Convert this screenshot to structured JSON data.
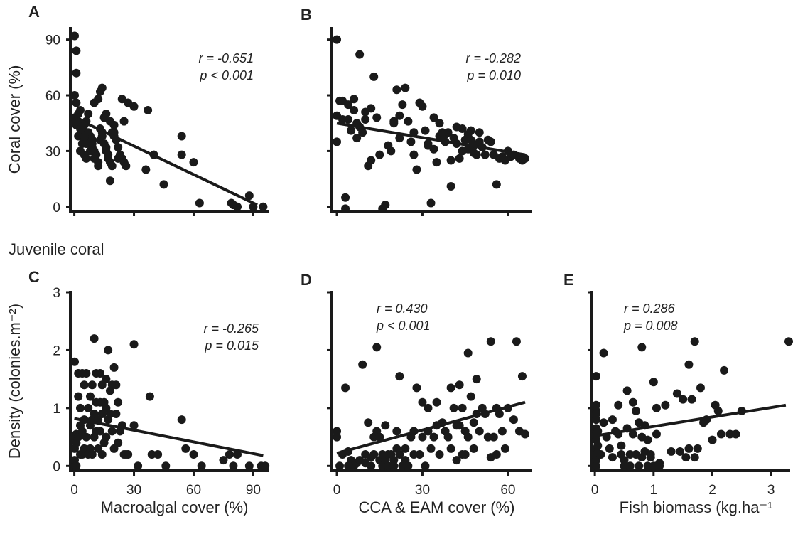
{
  "figure": {
    "row_label": "Juvenile coral"
  },
  "chart_data": [
    {
      "id": "A",
      "type": "scatter",
      "panel_letter": "A",
      "xlabel": "",
      "ylabel": "Coral cover (%)",
      "xlim": [
        -2,
        97
      ],
      "ylim": [
        -2,
        96
      ],
      "xticks": [
        0,
        30,
        60,
        90
      ],
      "yticks": [
        0,
        30,
        60,
        90
      ],
      "show_x_tick_labels": false,
      "show_y_tick_labels": true,
      "stats": {
        "r": "r = -0.651",
        "p": "p < 0.001"
      },
      "stats_anchor": "top-right",
      "trend": {
        "x": [
          0,
          92
        ],
        "y": [
          48,
          1
        ]
      },
      "points": {
        "x": [
          0,
          1,
          1,
          0,
          1,
          0,
          2,
          1,
          3,
          4,
          2,
          5,
          4,
          3,
          5,
          6,
          7,
          6,
          5,
          7,
          8,
          8,
          9,
          9,
          10,
          11,
          10,
          12,
          12,
          13,
          14,
          14,
          13,
          15,
          16,
          16,
          17,
          17,
          18,
          19,
          18,
          20,
          20,
          21,
          22,
          23,
          24,
          25,
          26,
          1,
          2,
          3,
          4,
          5,
          6,
          8,
          9,
          10,
          12,
          13,
          14,
          15,
          16,
          18,
          19,
          20,
          22,
          24,
          25,
          27,
          30,
          36,
          37,
          40,
          45,
          54,
          54,
          60,
          63,
          79,
          80,
          82,
          88,
          90,
          95
        ],
        "y": [
          92,
          84,
          72,
          60,
          56,
          48,
          46,
          44,
          42,
          40,
          38,
          36,
          34,
          30,
          28,
          26,
          50,
          46,
          44,
          40,
          38,
          36,
          34,
          32,
          30,
          28,
          26,
          24,
          22,
          42,
          40,
          38,
          36,
          34,
          32,
          30,
          28,
          26,
          24,
          22,
          14,
          44,
          40,
          36,
          32,
          28,
          26,
          24,
          22,
          46,
          50,
          52,
          44,
          38,
          34,
          30,
          36,
          56,
          58,
          62,
          64,
          48,
          50,
          46,
          40,
          38,
          26,
          58,
          46,
          56,
          54,
          20,
          52,
          28,
          12,
          38,
          28,
          24,
          2,
          2,
          1,
          0,
          6,
          0,
          0
        ]
      }
    },
    {
      "id": "B",
      "type": "scatter",
      "panel_letter": "B",
      "xlabel": "",
      "ylabel": "",
      "xlim": [
        -2,
        68
      ],
      "ylim": [
        -2,
        96
      ],
      "xticks": [
        0,
        30,
        60
      ],
      "yticks": [
        0,
        30,
        60,
        90
      ],
      "show_x_tick_labels": false,
      "show_y_tick_labels": false,
      "stats": {
        "r": "r = -0.282",
        "p": "p = 0.010"
      },
      "stats_anchor": "top-right",
      "trend": {
        "x": [
          0,
          66
        ],
        "y": [
          45,
          28
        ]
      },
      "points": {
        "x": [
          0,
          0,
          0,
          1,
          2,
          2,
          3,
          3,
          4,
          4,
          5,
          6,
          6,
          7,
          7,
          8,
          8,
          9,
          10,
          10,
          11,
          12,
          12,
          13,
          14,
          15,
          16,
          17,
          18,
          19,
          20,
          20,
          21,
          22,
          22,
          23,
          24,
          25,
          26,
          27,
          27,
          28,
          29,
          30,
          31,
          32,
          32,
          33,
          34,
          34,
          35,
          36,
          36,
          37,
          38,
          38,
          39,
          40,
          40,
          41,
          42,
          42,
          43,
          44,
          44,
          45,
          46,
          46,
          47,
          47,
          48,
          48,
          49,
          50,
          50,
          51,
          52,
          53,
          54,
          55,
          56,
          57,
          58,
          59,
          60,
          61,
          62,
          64,
          65,
          66
        ],
        "y": [
          90,
          49,
          35,
          57,
          57,
          47,
          5,
          -1,
          55,
          47,
          41,
          58,
          52,
          45,
          37,
          82,
          43,
          40,
          51,
          47,
          22,
          25,
          53,
          70,
          48,
          28,
          -1,
          1,
          33,
          30,
          46,
          45,
          63,
          37,
          49,
          55,
          64,
          46,
          35,
          40,
          28,
          20,
          56,
          54,
          41,
          33,
          34,
          2,
          31,
          48,
          24,
          45,
          38,
          40,
          39,
          35,
          40,
          25,
          11,
          37,
          43,
          34,
          26,
          42,
          30,
          36,
          31,
          39,
          36,
          41,
          33,
          29,
          28,
          40,
          35,
          32,
          28,
          36,
          35,
          28,
          12,
          26,
          27,
          25,
          30,
          27,
          28,
          26,
          25,
          26
        ]
      }
    },
    {
      "id": "C",
      "type": "scatter",
      "panel_letter": "C",
      "xlabel": "Macroalgal cover (%)",
      "ylabel": "Density (colonies.m⁻²)",
      "xlim": [
        -2,
        97
      ],
      "ylim": [
        -0.07,
        3
      ],
      "xticks": [
        0,
        30,
        60,
        90
      ],
      "yticks": [
        0,
        1,
        2,
        3
      ],
      "show_x_tick_labels": true,
      "show_y_tick_labels": true,
      "stats": {
        "r": "r = -0.265",
        "p": "p = 0.015"
      },
      "stats_anchor": "top-right",
      "trend": {
        "x": [
          0,
          95
        ],
        "y": [
          0.82,
          0.18
        ]
      },
      "points": {
        "x": [
          0,
          0,
          0,
          0,
          0,
          1,
          1,
          1,
          2,
          2,
          2,
          3,
          3,
          3,
          4,
          4,
          4,
          5,
          5,
          5,
          6,
          6,
          7,
          7,
          8,
          8,
          8,
          9,
          9,
          9,
          10,
          10,
          10,
          11,
          11,
          11,
          12,
          12,
          13,
          13,
          13,
          14,
          14,
          14,
          15,
          15,
          16,
          16,
          16,
          17,
          17,
          18,
          18,
          19,
          19,
          20,
          20,
          21,
          21,
          22,
          22,
          23,
          24,
          25,
          26,
          27,
          30,
          30,
          32,
          38,
          39,
          42,
          46,
          54,
          56,
          60,
          64,
          75,
          78,
          80,
          82,
          88,
          94,
          96
        ],
        "y": [
          1.8,
          0.5,
          0.3,
          0.1,
          0,
          0.55,
          0.4,
          0,
          1.6,
          1.2,
          0.5,
          1.0,
          0.7,
          0.2,
          1.6,
          0.6,
          0.2,
          1.4,
          0.8,
          0.3,
          1.6,
          0.5,
          1.0,
          0.2,
          1.2,
          0.7,
          0.3,
          1.4,
          0.8,
          0.2,
          2.2,
          0.9,
          0.5,
          1.6,
          1.1,
          0.6,
          0.8,
          0.3,
          1.6,
          1.1,
          0.6,
          1.4,
          0.9,
          0.2,
          1.1,
          0.4,
          1.5,
          1.0,
          0.5,
          2.0,
          0.8,
          1.3,
          0.9,
          1.4,
          0.6,
          1.7,
          0.3,
          1.4,
          0.9,
          1.1,
          0.4,
          0.6,
          0.7,
          0.2,
          0.2,
          0.2,
          2.1,
          0.7,
          0,
          1.2,
          0.2,
          0.2,
          0,
          0.8,
          0.3,
          0.2,
          0,
          0.1,
          0.2,
          0,
          0.2,
          0,
          0,
          0
        ]
      }
    },
    {
      "id": "D",
      "type": "scatter",
      "panel_letter": "D",
      "xlabel": "CCA & EAM cover (%)",
      "ylabel": "",
      "xlim": [
        -2,
        68
      ],
      "ylim": [
        -0.07,
        3
      ],
      "xticks": [
        0,
        30,
        60
      ],
      "yticks": [
        0,
        1,
        2,
        3
      ],
      "show_x_tick_labels": true,
      "show_y_tick_labels": false,
      "stats": {
        "r": "r = 0.430",
        "p": "p < 0.001"
      },
      "stats_anchor": "top-left",
      "trend": {
        "x": [
          0,
          66
        ],
        "y": [
          0.22,
          1.1
        ]
      },
      "points": {
        "x": [
          0,
          0,
          1,
          2,
          3,
          4,
          4,
          5,
          6,
          7,
          8,
          9,
          10,
          10,
          11,
          12,
          12,
          13,
          13,
          14,
          14,
          15,
          15,
          16,
          16,
          17,
          17,
          18,
          18,
          19,
          20,
          20,
          21,
          21,
          22,
          22,
          23,
          24,
          24,
          25,
          26,
          27,
          27,
          28,
          29,
          30,
          30,
          31,
          32,
          32,
          33,
          34,
          35,
          35,
          36,
          37,
          38,
          39,
          40,
          40,
          41,
          42,
          42,
          43,
          43,
          44,
          44,
          45,
          45,
          46,
          46,
          47,
          48,
          48,
          49,
          49,
          50,
          51,
          52,
          53,
          54,
          54,
          55,
          56,
          56,
          57,
          58,
          59,
          60,
          62,
          63,
          64,
          65,
          66
        ],
        "y": [
          0.5,
          0.6,
          0,
          0.2,
          1.35,
          0,
          0.25,
          0.1,
          0,
          0.05,
          0.1,
          1.75,
          0.2,
          0.05,
          0.75,
          0.15,
          0,
          0.5,
          0.2,
          0.6,
          2.05,
          0.1,
          0.5,
          0.2,
          0,
          0.1,
          0.7,
          0.2,
          0,
          0.2,
          0.1,
          0,
          0.3,
          0.6,
          0.2,
          1.55,
          0,
          0.1,
          0.3,
          0,
          0.5,
          0.2,
          0.6,
          1.35,
          0.2,
          0.5,
          1.1,
          0,
          0.6,
          1.0,
          0.3,
          0.5,
          1.1,
          0.7,
          0.2,
          0.75,
          0.6,
          0.5,
          1.35,
          0.3,
          1.0,
          0.7,
          0.1,
          1.4,
          0.7,
          0.2,
          1.0,
          0.6,
          0.2,
          1.95,
          0.5,
          1.2,
          0.75,
          0.3,
          1.5,
          0.9,
          0.6,
          1.0,
          0.9,
          0.5,
          2.15,
          0.15,
          0.5,
          0.2,
          1.0,
          0.9,
          0.6,
          0.3,
          1.0,
          0.8,
          2.15,
          0.6,
          1.55,
          0.55
        ]
      }
    },
    {
      "id": "E",
      "type": "scatter",
      "panel_letter": "E",
      "xlabel": "Fish biomass (kg.ha⁻¹",
      "ylabel": "",
      "xlim": [
        -0.05,
        3.3
      ],
      "ylim": [
        -0.07,
        3
      ],
      "xticks": [
        0,
        1,
        2,
        3
      ],
      "yticks": [
        0,
        1,
        2,
        3
      ],
      "show_x_tick_labels": true,
      "show_y_tick_labels": false,
      "stats": {
        "r": "r = 0.286",
        "p": "p = 0.008"
      },
      "stats_anchor": "top-left",
      "trend": {
        "x": [
          0,
          3.25
        ],
        "y": [
          0.52,
          1.05
        ]
      },
      "points": {
        "x": [
          0,
          0,
          0,
          0,
          0,
          0,
          0,
          0,
          0,
          0,
          0,
          0,
          0.05,
          0.05,
          0.1,
          0.15,
          0.15,
          0.2,
          0.25,
          0.3,
          0.3,
          0.35,
          0.4,
          0.4,
          0.45,
          0.45,
          0.5,
          0.5,
          0.55,
          0.55,
          0.6,
          0.6,
          0.65,
          0.65,
          0.7,
          0.7,
          0.75,
          0.75,
          0.8,
          0.8,
          0.8,
          0.85,
          0.85,
          0.9,
          0.9,
          0.95,
          0.95,
          1.0,
          1.0,
          1.05,
          1.05,
          1.1,
          1.1,
          1.2,
          1.3,
          1.4,
          1.45,
          1.5,
          1.55,
          1.6,
          1.6,
          1.65,
          1.7,
          1.7,
          1.75,
          1.8,
          1.85,
          1.9,
          2.0,
          2.05,
          2.1,
          2.15,
          2.2,
          2.3,
          2.4,
          2.5,
          3.3
        ],
        "y": [
          1.55,
          1.05,
          0.95,
          0.8,
          0.65,
          0.55,
          0.45,
          0.3,
          0.2,
          0.1,
          0,
          0.9,
          0.6,
          0.35,
          0.2,
          1.95,
          0.75,
          0.5,
          0.3,
          0.15,
          0.8,
          0.6,
          0.55,
          1.05,
          0.35,
          0.2,
          0.1,
          0,
          0.65,
          1.3,
          0.2,
          0,
          0.55,
          1.1,
          0.95,
          0.2,
          0,
          0.75,
          0.15,
          2.05,
          0.5,
          0.25,
          0.7,
          0,
          0.45,
          0.2,
          0.15,
          0,
          1.45,
          1.0,
          0.55,
          0.05,
          0,
          1.05,
          0.25,
          1.25,
          0.25,
          1.15,
          0.15,
          1.75,
          0.3,
          1.15,
          0.15,
          2.15,
          0.3,
          1.35,
          0.75,
          0.8,
          0.45,
          1.05,
          0.95,
          0.55,
          1.65,
          0.55,
          0.55,
          0.95,
          2.15
        ]
      }
    }
  ]
}
